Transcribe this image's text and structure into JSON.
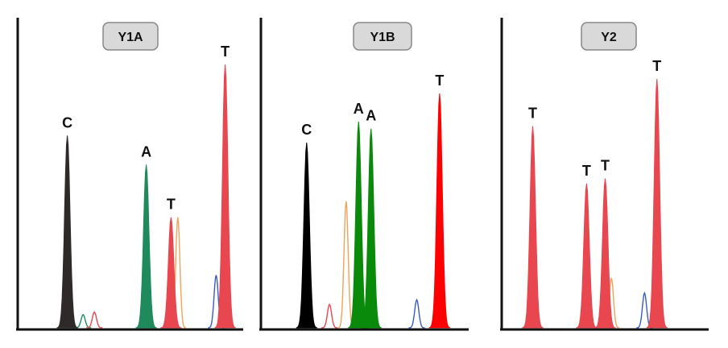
{
  "chart_data": [
    {
      "type": "area",
      "title": "Y1A",
      "colors": {
        "C": "#2e2a2a",
        "A": "#1f8a5c",
        "T": "#e8474f"
      },
      "peaks": [
        {
          "base": "C",
          "label": "C",
          "x": 0.22,
          "height": 0.73
        },
        {
          "base": "A",
          "label": "A",
          "x": 0.57,
          "height": 0.62
        },
        {
          "base": "T",
          "label": "T",
          "x": 0.68,
          "height": 0.42
        },
        {
          "base": "T",
          "label": "T",
          "x": 0.92,
          "height": 1.0
        }
      ],
      "traces": [
        {
          "color": "#f0a35a",
          "x": 0.71,
          "height": 0.42
        },
        {
          "color": "#3a5bc7",
          "x": 0.88,
          "height": 0.2
        },
        {
          "color": "#1f8a5c",
          "x": 0.29,
          "height": 0.05
        },
        {
          "color": "#e8474f",
          "x": 0.34,
          "height": 0.06
        }
      ]
    },
    {
      "type": "area",
      "title": "Y1B",
      "colors": {
        "C": "#000000",
        "A": "#0a8a0a",
        "T": "#ff0000"
      },
      "peaks": [
        {
          "base": "C",
          "label": "C",
          "x": 0.22,
          "height": 0.79
        },
        {
          "base": "A",
          "label": "A",
          "x": 0.47,
          "height": 0.88
        },
        {
          "base": "A",
          "label": "A",
          "x": 0.53,
          "height": 0.85
        },
        {
          "base": "T",
          "label": "T",
          "x": 0.86,
          "height": 1.0
        }
      ],
      "traces": [
        {
          "color": "#f0a35a",
          "x": 0.41,
          "height": 0.54
        },
        {
          "color": "#3a5bc7",
          "x": 0.75,
          "height": 0.12
        },
        {
          "color": "#e8474f",
          "x": 0.33,
          "height": 0.1
        }
      ]
    },
    {
      "type": "area",
      "title": "Y2",
      "colors": {
        "T": "#e8474f"
      },
      "peaks": [
        {
          "base": "T",
          "label": "T",
          "x": 0.15,
          "height": 0.81
        },
        {
          "base": "T",
          "label": "T",
          "x": 0.41,
          "height": 0.58
        },
        {
          "base": "T",
          "label": "T",
          "x": 0.5,
          "height": 0.6
        },
        {
          "base": "T",
          "label": "T",
          "x": 0.75,
          "height": 1.0
        }
      ],
      "traces": [
        {
          "color": "#3a5bc7",
          "x": 0.69,
          "height": 0.14
        },
        {
          "color": "#f0a35a",
          "x": 0.53,
          "height": 0.2
        }
      ]
    }
  ]
}
